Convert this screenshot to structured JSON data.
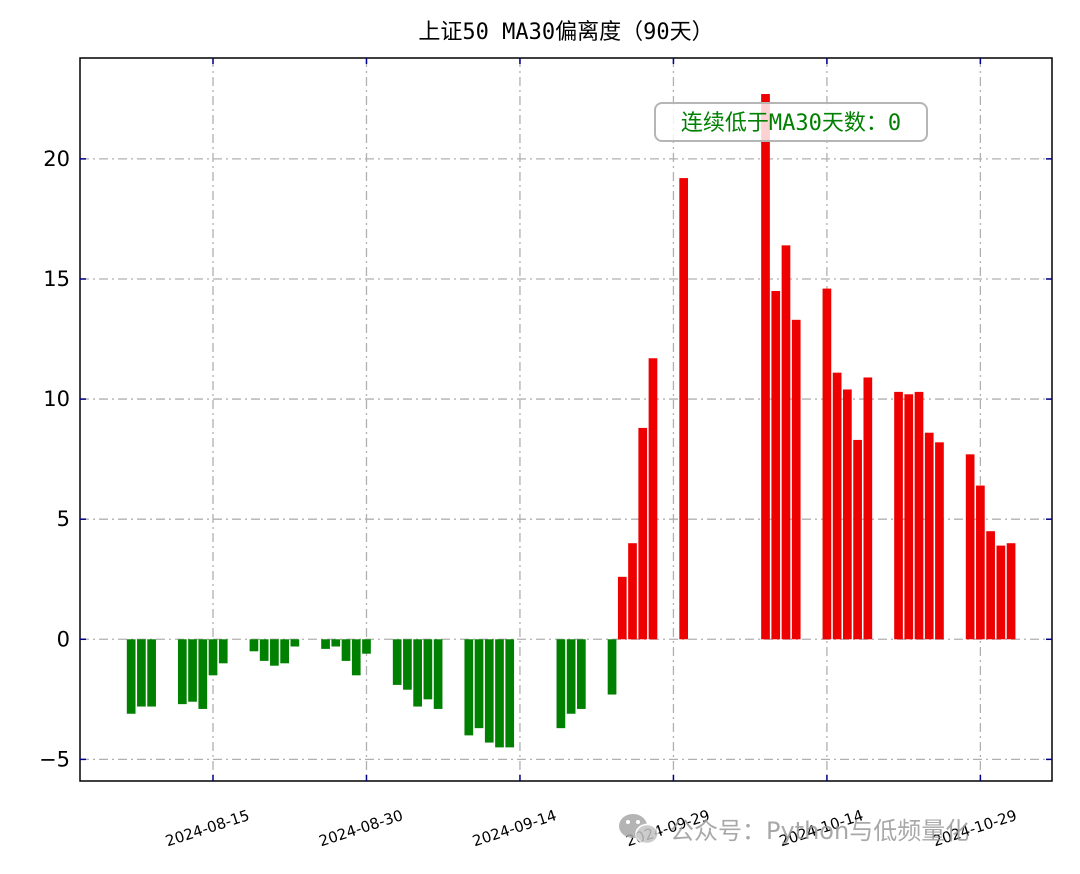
{
  "chart_data": {
    "type": "bar",
    "title": "上证50 MA30偏离度（90天）",
    "xlabel": "",
    "ylabel": "",
    "x_tick_labels": [
      "2024-08-15",
      "2024-08-30",
      "2024-09-14",
      "2024-09-29",
      "2024-10-14",
      "2024-10-29"
    ],
    "x_tick_dates": [
      "2024-08-15",
      "2024-08-30",
      "2024-09-14",
      "2024-09-29",
      "2024-10-14",
      "2024-10-29"
    ],
    "y_ticks": [
      -5,
      0,
      5,
      10,
      15,
      20
    ],
    "y_tick_labels": [
      "−5",
      "0",
      "5",
      "10",
      "15",
      "20"
    ],
    "xlim": [
      "2024-08-02",
      "2024-11-05"
    ],
    "ylim": [
      -5.9,
      24.2
    ],
    "grid": true,
    "positive_color": "#ee0000",
    "negative_color": "#008000",
    "annotation": {
      "text": "连续低于MA30天数：0",
      "position": "top-right",
      "color": "#008000"
    },
    "series": [
      {
        "dates": [
          "2024-08-07",
          "2024-08-08",
          "2024-08-09",
          "2024-08-12",
          "2024-08-13",
          "2024-08-14",
          "2024-08-15",
          "2024-08-16",
          "2024-08-19",
          "2024-08-20",
          "2024-08-21",
          "2024-08-22",
          "2024-08-23",
          "2024-08-26",
          "2024-08-27",
          "2024-08-28",
          "2024-08-29",
          "2024-08-30",
          "2024-09-02",
          "2024-09-03",
          "2024-09-04",
          "2024-09-05",
          "2024-09-06",
          "2024-09-09",
          "2024-09-10",
          "2024-09-11",
          "2024-09-12",
          "2024-09-13",
          "2024-09-18",
          "2024-09-19",
          "2024-09-20",
          "2024-09-23",
          "2024-09-24",
          "2024-09-25",
          "2024-09-26",
          "2024-09-27",
          "2024-09-30",
          "2024-10-08",
          "2024-10-09",
          "2024-10-10",
          "2024-10-11",
          "2024-10-14",
          "2024-10-15",
          "2024-10-16",
          "2024-10-17",
          "2024-10-18",
          "2024-10-21",
          "2024-10-22",
          "2024-10-23",
          "2024-10-24",
          "2024-10-25",
          "2024-10-28",
          "2024-10-29",
          "2024-10-30",
          "2024-10-31",
          "2024-11-01"
        ],
        "values": [
          -3.1,
          -2.8,
          -2.8,
          -2.7,
          -2.6,
          -2.9,
          -1.5,
          -1.0,
          -0.5,
          -0.9,
          -1.1,
          -1.0,
          -0.3,
          -0.4,
          -0.3,
          -0.9,
          -1.5,
          -0.6,
          -1.9,
          -2.1,
          -2.8,
          -2.5,
          -2.9,
          -4.0,
          -3.7,
          -4.3,
          -4.5,
          -4.5,
          -3.7,
          -3.1,
          -2.9,
          -2.3,
          2.6,
          4.0,
          8.8,
          11.7,
          19.2,
          22.7,
          14.5,
          16.4,
          13.3,
          14.6,
          11.1,
          10.4,
          8.3,
          10.9,
          10.3,
          10.2,
          10.3,
          8.6,
          8.2,
          7.7,
          6.4,
          4.5,
          3.9,
          4.0
        ]
      }
    ]
  },
  "watermark": {
    "icon": "wechat-icon",
    "text": "公众号：Python与低频量化"
  }
}
